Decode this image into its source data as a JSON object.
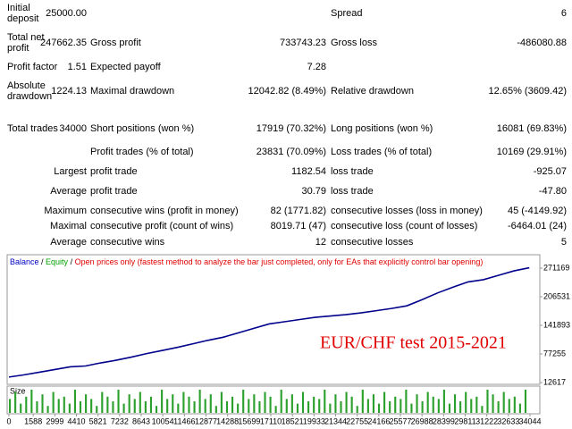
{
  "table": {
    "rows": [
      [
        "Initial deposit",
        "25000.00",
        null,
        null,
        "Spread",
        "6"
      ],
      [
        "Total net profit",
        "247662.35",
        "Gross profit",
        "733743.23",
        "Gross loss",
        "-486080.88"
      ],
      [
        "Profit factor",
        "1.51",
        "Expected payoff",
        "7.28",
        null,
        null
      ],
      [
        "Absolute drawdown",
        "1224.13",
        "Maximal drawdown",
        "12042.82 (8.49%)",
        "Relative drawdown",
        "12.65% (3609.42)"
      ],
      [
        "Total trades",
        "34000",
        "Short positions (won %)",
        "17919 (70.32%)",
        "Long positions (won %)",
        "16081 (69.83%)"
      ],
      [
        null,
        null,
        "Profit trades (% of total)",
        "23831 (70.09%)",
        "Loss trades (% of total)",
        "10169 (29.91%)"
      ],
      [
        null,
        "Largest",
        "profit trade",
        "1182.54",
        "loss trade",
        "-925.07"
      ],
      [
        null,
        "Average",
        "profit trade",
        "30.79",
        "loss trade",
        "-47.80"
      ],
      [
        null,
        "Maximum",
        "consecutive wins (profit in money)",
        "82 (1771.82)",
        "consecutive losses (loss in money)",
        "45 (-4149.92)"
      ],
      [
        null,
        "Maximal",
        "consecutive profit (count of wins)",
        "8019.71 (47)",
        "consecutive loss (count of losses)",
        "-6464.01 (24)"
      ],
      [
        null,
        "Average",
        "consecutive wins",
        "12",
        "consecutive losses",
        "5"
      ]
    ]
  },
  "chart_data": {
    "type": "line",
    "header": [
      {
        "text": "Balance",
        "color": "#0000c0"
      },
      {
        "text": " / ",
        "color": "#000000"
      },
      {
        "text": "Equity",
        "color": "#00a000"
      },
      {
        "text": " / ",
        "color": "#000000"
      },
      {
        "text": "Open prices only (fastest method to analyze the bar just completed, only for EAs that explicitly control bar opening)",
        "color": "#e00000"
      }
    ],
    "annotation": "EUR/CHF test 2015-2021",
    "x": [
      0,
      1000,
      2000,
      3000,
      4000,
      5000,
      6000,
      7000,
      8000,
      9000,
      10000,
      11000,
      12000,
      13000,
      14000,
      15000,
      16000,
      17000,
      18000,
      19000,
      20000,
      21000,
      22000,
      23000,
      24000,
      25000,
      26000,
      27000,
      28000,
      29000,
      30000,
      31000,
      32000,
      33000,
      34000
    ],
    "series": [
      {
        "name": "Balance",
        "color": "#00008b",
        "values": [
          25000,
          30000,
          36000,
          42000,
          48000,
          50000,
          57000,
          63000,
          70000,
          78000,
          85000,
          92000,
          100000,
          108000,
          115000,
          125000,
          135000,
          145000,
          150000,
          155000,
          160000,
          163000,
          166000,
          170000,
          175000,
          180000,
          186000,
          200000,
          215000,
          228000,
          240000,
          245000,
          255000,
          265000,
          272000
        ]
      }
    ],
    "xlim": [
      0,
      34044
    ],
    "xticks": [
      0,
      1588,
      2999,
      4410,
      5821,
      7232,
      8643,
      10054,
      11466,
      12877,
      14288,
      15699,
      17110,
      18521,
      19933,
      21344,
      22755,
      24166,
      25577,
      26988,
      28399,
      29811,
      31222,
      32633,
      34044
    ],
    "ylim": [
      12617,
      271169
    ],
    "yticks": [
      271169,
      206531,
      141893,
      77255,
      12617
    ],
    "size_label": "Size",
    "size_color": "#2ca02c",
    "size_values": [
      6,
      9,
      4,
      7,
      10,
      5,
      8,
      3,
      9,
      6,
      7,
      4,
      10,
      5,
      8,
      6,
      3,
      9,
      7,
      5,
      10,
      4,
      8,
      6,
      9,
      5,
      7,
      3,
      10,
      6,
      8,
      4,
      9,
      7,
      5,
      10,
      6,
      8,
      3,
      9,
      5,
      7,
      4,
      10,
      6,
      8,
      5,
      9,
      7,
      3,
      10,
      6,
      8,
      4,
      9,
      5,
      7,
      6,
      10,
      4,
      8,
      5,
      9,
      7,
      3,
      10,
      6,
      8,
      4,
      9,
      5,
      7,
      6,
      10,
      4,
      8,
      5,
      9,
      7,
      6,
      10,
      4,
      8,
      5,
      9,
      6,
      7,
      3,
      10,
      8,
      5,
      9,
      6,
      7,
      4,
      10
    ]
  }
}
